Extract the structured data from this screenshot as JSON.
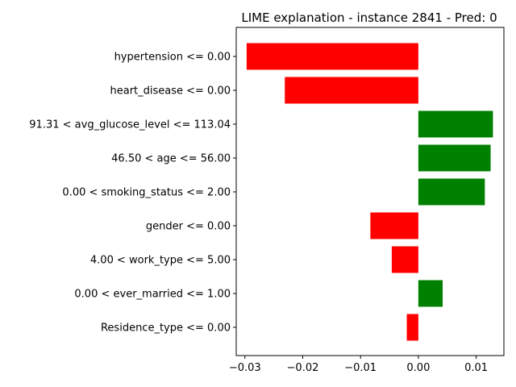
{
  "chart_data": {
    "type": "bar",
    "orientation": "horizontal",
    "title": "LIME explanation - instance 2841 - Pred: 0",
    "xlabel": "",
    "ylabel": "",
    "xlim": [
      -0.0315,
      0.0148
    ],
    "grid": false,
    "categories": [
      "hypertension <= 0.00",
      "heart_disease <= 0.00",
      "91.31 < avg_glucose_level <= 113.04",
      "46.50 < age <= 56.00",
      "0.00 < smoking_status <= 2.00",
      "gender <= 0.00",
      "4.00 < work_type <= 5.00",
      "0.00 < ever_married <= 1.00",
      "Residence_type <= 0.00"
    ],
    "values": [
      -0.0297,
      -0.0231,
      0.0129,
      0.0125,
      0.0115,
      -0.0083,
      -0.0046,
      0.0042,
      -0.002
    ],
    "colors": {
      "positive": "#008000",
      "negative": "#ff0000"
    },
    "xticks": [
      {
        "value": -0.03,
        "label": "−0.03"
      },
      {
        "value": -0.02,
        "label": "−0.02"
      },
      {
        "value": -0.01,
        "label": "−0.01"
      },
      {
        "value": 0.0,
        "label": "0.00"
      },
      {
        "value": 0.01,
        "label": "0.01"
      }
    ]
  }
}
